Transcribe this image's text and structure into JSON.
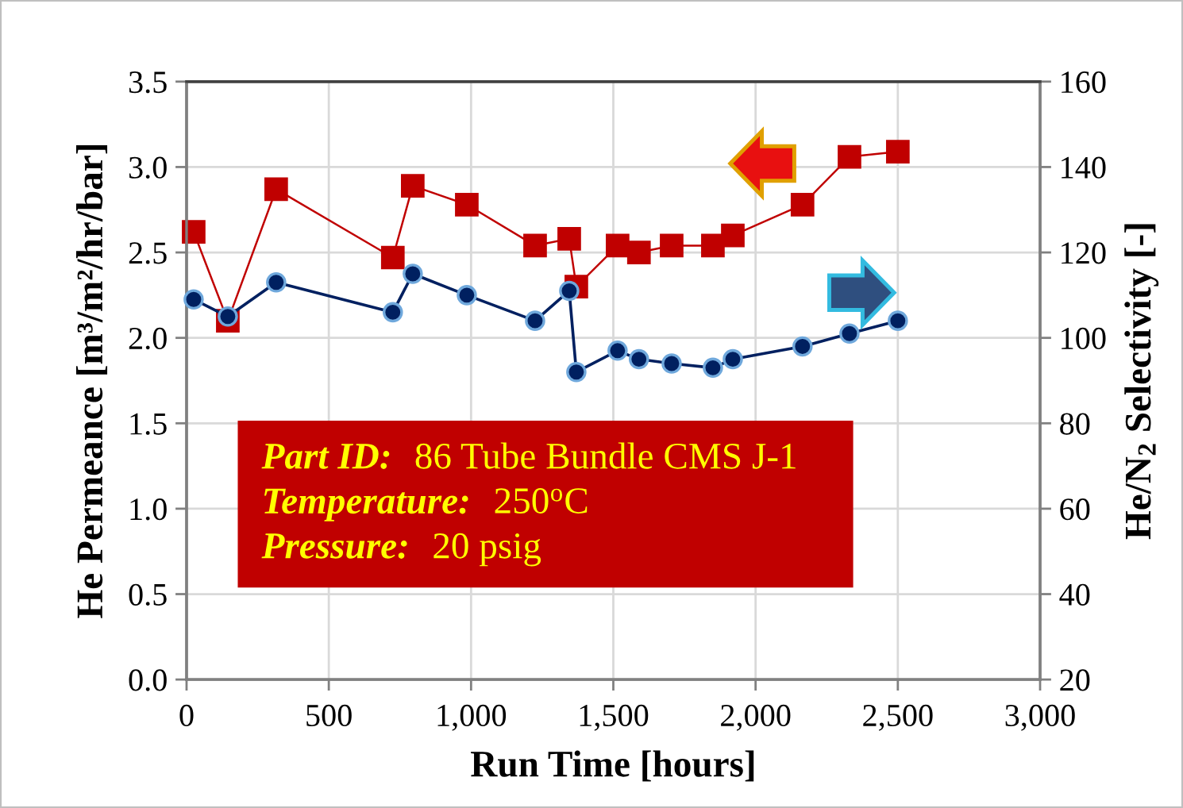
{
  "chart_data": {
    "type": "line",
    "x": [
      25,
      145,
      315,
      725,
      795,
      985,
      1225,
      1345,
      1370,
      1515,
      1590,
      1705,
      1850,
      1920,
      2165,
      2330,
      2500
    ],
    "series": [
      {
        "color": "#c00000",
        "marker": "square",
        "values": [
          2.62,
          2.1,
          2.87,
          2.47,
          2.89,
          2.78,
          2.54,
          2.58,
          2.3,
          2.54,
          2.5,
          2.54,
          2.54,
          2.6,
          2.78,
          3.06,
          3.09
        ]
      },
      {
        "color": "#002060",
        "marker": "circle",
        "axis": "y2",
        "values": [
          109,
          105,
          113,
          106,
          115,
          110,
          104,
          111,
          92,
          97,
          95,
          94,
          93,
          95,
          98,
          101,
          104
        ]
      }
    ],
    "xlabel": "Run Time [hours]",
    "ylabel": "He Permeance [m³/m²/hr/bar]",
    "y2label": "He/N$_{2}$ Selectivity [-]",
    "xlim": [
      0,
      3000
    ],
    "xticks": [
      0,
      500,
      {
        "value": 1000,
        "label": "1,000"
      },
      {
        "value": 1500,
        "label": "1,500"
      },
      {
        "value": 2000,
        "label": "2,000"
      },
      {
        "value": 2500,
        "label": "2,500"
      },
      {
        "value": 3000,
        "label": "3,000"
      }
    ],
    "ylim": [
      0,
      3.5
    ],
    "yticks": [
      {
        "value": 0,
        "label": "0.0"
      },
      0.5,
      {
        "value": 1,
        "label": "1.0"
      },
      1.5,
      {
        "value": 2,
        "label": "2.0"
      },
      2.5,
      {
        "value": 3,
        "label": "3.0"
      },
      3.5
    ],
    "y2lim": [
      20,
      160
    ],
    "y2ticks": [
      20,
      40,
      60,
      80,
      100,
      120,
      140,
      160
    ],
    "annotations": [
      "Part ID:",
      "86 Tube Bundle CMS J-1",
      "Temperature:",
      "250$^{o}$C",
      "Pressure:",
      "20 psig"
    ],
    "grid": true
  }
}
